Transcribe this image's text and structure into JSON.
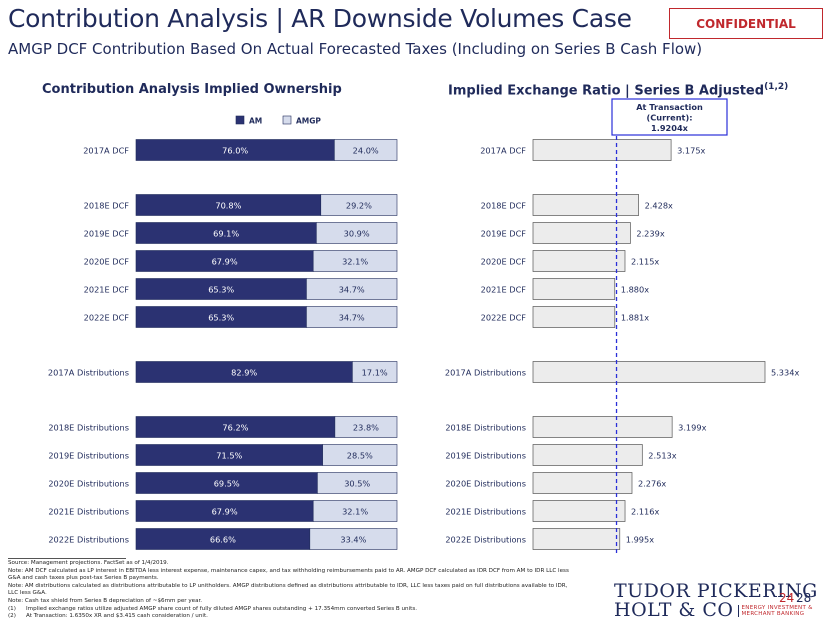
{
  "header": {
    "title": "Contribution Analysis | AR Downside Volumes Case",
    "subtitle": "AMGP DCF Contribution Based On Actual Forecasted Taxes (Including on Series B Cash Flow)",
    "confidential": "CONFIDENTIAL"
  },
  "colors": {
    "am": "#2b3272",
    "amgp": "#d6dcec",
    "ratio_bar": "#ececec",
    "dash": "#2a2fd8",
    "accent_red": "#c0282d"
  },
  "chart_data": [
    {
      "type": "bar",
      "orientation": "horizontal",
      "stacked": true,
      "percent": true,
      "title": "Contribution Analysis Implied Ownership",
      "legend": [
        "AM",
        "AMGP"
      ],
      "legend_position": "top",
      "categories": [
        "2017A DCF",
        "2018E DCF",
        "2019E DCF",
        "2020E DCF",
        "2021E DCF",
        "2022E DCF",
        "2017A Distributions",
        "2018E Distributions",
        "2019E Distributions",
        "2020E Distributions",
        "2021E Distributions",
        "2022E Distributions"
      ],
      "series": [
        {
          "name": "AM",
          "values": [
            76.0,
            70.8,
            69.1,
            67.9,
            65.3,
            65.3,
            82.9,
            76.2,
            71.5,
            69.5,
            67.9,
            66.6
          ],
          "labels": [
            "76.0%",
            "70.8%",
            "69.1%",
            "67.9%",
            "65.3%",
            "65.3%",
            "82.9%",
            "76.2%",
            "71.5%",
            "69.5%",
            "67.9%",
            "66.6%"
          ]
        },
        {
          "name": "AMGP",
          "values": [
            24.0,
            29.2,
            30.9,
            32.1,
            34.7,
            34.7,
            17.1,
            23.8,
            28.5,
            30.5,
            32.1,
            33.4
          ],
          "labels": [
            "24.0%",
            "29.2%",
            "30.9%",
            "32.1%",
            "34.7%",
            "34.7%",
            "17.1%",
            "23.8%",
            "28.5%",
            "30.5%",
            "32.1%",
            "33.4%"
          ]
        }
      ]
    },
    {
      "type": "bar",
      "orientation": "horizontal",
      "title": "Implied Exchange Ratio | Series B Adjusted",
      "title_superscript": "(1,2)",
      "categories": [
        "2017A DCF",
        "2018E DCF",
        "2019E DCF",
        "2020E DCF",
        "2021E DCF",
        "2022E DCF",
        "2017A Distributions",
        "2018E Distributions",
        "2019E Distributions",
        "2020E Distributions",
        "2021E Distributions",
        "2022E Distributions"
      ],
      "values": [
        3.175,
        2.428,
        2.239,
        2.115,
        1.88,
        1.881,
        5.334,
        3.199,
        2.513,
        2.276,
        2.116,
        1.995
      ],
      "labels": [
        "3.175x",
        "2.428x",
        "2.239x",
        "2.115x",
        "1.880x",
        "1.881x",
        "5.334x",
        "3.199x",
        "2.513x",
        "2.276x",
        "2.116x",
        "1.995x"
      ],
      "reference_line": {
        "value": 1.9204,
        "label_lines": [
          "At Transaction",
          "(Current):",
          "1.9204x"
        ]
      },
      "xlim": [
        0,
        5.334
      ]
    }
  ],
  "footnotes": [
    "Source: Management projections. FactSet as of 1/4/2019.",
    "Note: AM DCF calculated as LP interest in EBITDA less interest expense, maintenance capex, and tax withholding reimbursements paid to AR. AMGP DCF calculated as IDR DCF from AM to IDR LLC less",
    "G&A and cash taxes plus post-tax Series B payments.",
    "Note: AM distributions calculated as distributions attributable to LP unitholders. AMGP distributions defined as distributions attributable to IDR, LLC less taxes paid on full distributions available to IDR,",
    "LLC less G&A.",
    "Note: Cash tax shield from Series B depreciation of ~$6mm per year.",
    "(1)|Implied exchange ratios utilize adjusted AMGP share count of fully diluted AMGP shares outstanding + 17.354mm converted Series B units.",
    "(2)|At Transaction: 1.6350x XR and $3.415 cash consideration / unit."
  ],
  "logo": {
    "line1": "TUDOR PICKERING",
    "line2": "HOLT & CO",
    "tagline_1": "ENERGY INVESTMENT &",
    "tagline_2": "MERCHANT BANKING"
  },
  "page": {
    "current": "24",
    "total": "28"
  }
}
